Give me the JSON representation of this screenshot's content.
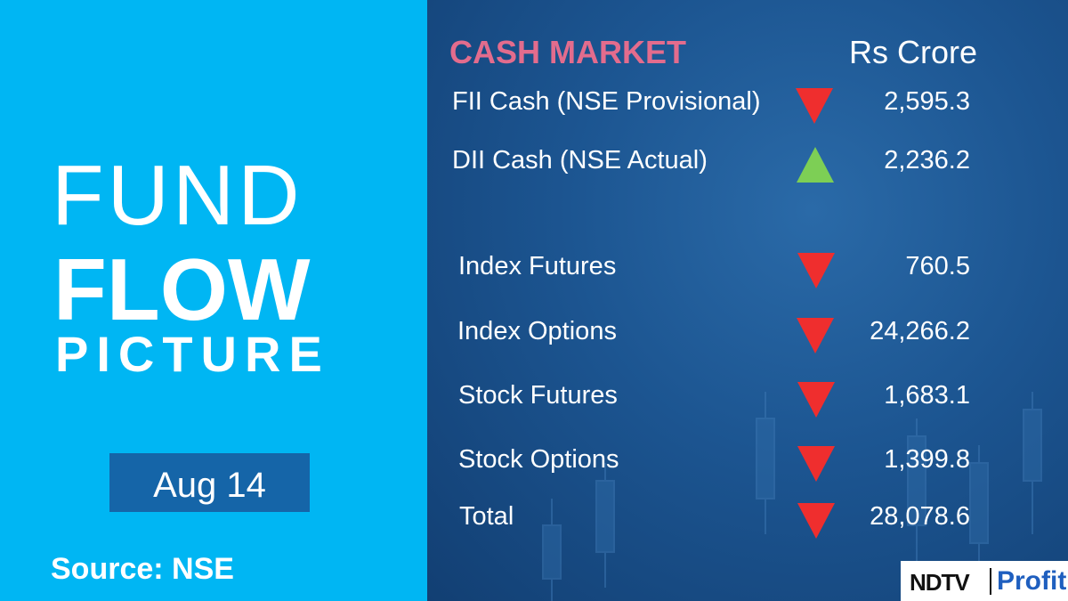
{
  "title": {
    "line1": "FUND",
    "line2": "FLOW",
    "line3": "PICTURE"
  },
  "date": "Aug 14",
  "source": "Source: NSE",
  "table": {
    "heading": "CASH MARKET",
    "unit": "Rs Crore",
    "rows": [
      {
        "label": "FII Cash (NSE Provisional)",
        "trend": "down",
        "value": "2,595.3"
      },
      {
        "label": "DII Cash (NSE Actual)",
        "trend": "up",
        "value": "2,236.2"
      },
      {
        "label": "Index Futures",
        "trend": "down",
        "value": "760.5"
      },
      {
        "label": "Index Options",
        "trend": "down",
        "value": "24,266.2"
      },
      {
        "label": "Stock Futures",
        "trend": "down",
        "value": "1,683.1"
      },
      {
        "label": "Stock Options",
        "trend": "down",
        "value": "1,399.8"
      },
      {
        "label": "Total",
        "trend": "down",
        "value": "28,078.6"
      }
    ]
  },
  "logo": {
    "brand": "NDTV",
    "product": "Profit"
  }
}
